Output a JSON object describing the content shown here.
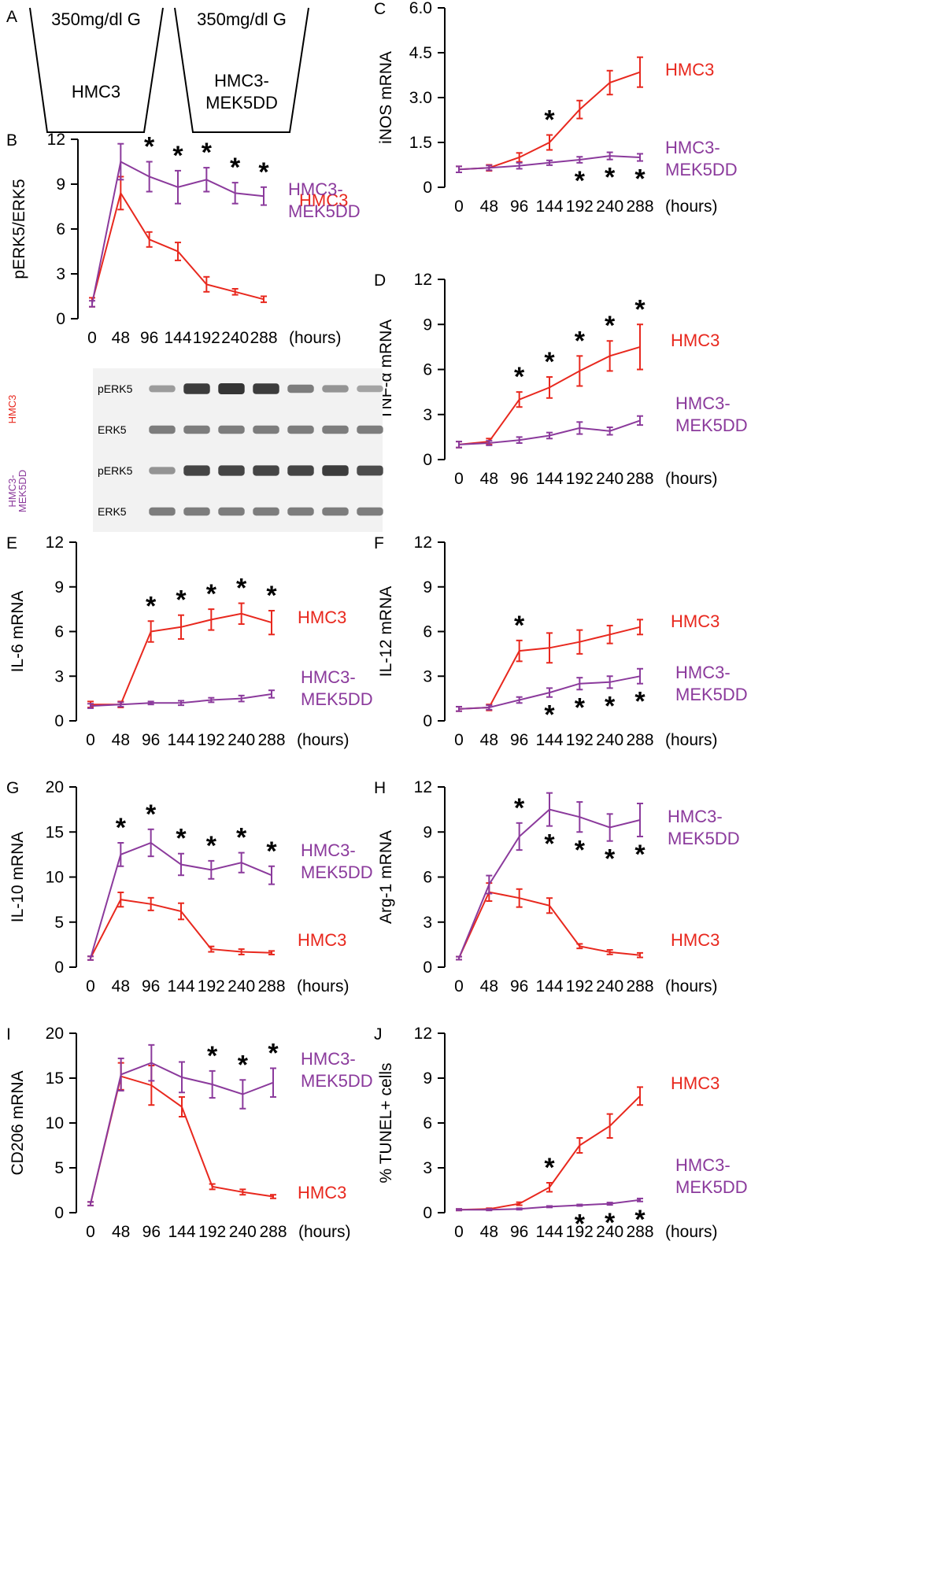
{
  "colors": {
    "hmc3": "#e8281e",
    "mek5dd": "#8b3a9c",
    "axis": "#000000",
    "blot_band": "#2a2a2a",
    "blot_bg": "#f2f2f2"
  },
  "x_unit": "(hours)",
  "panel_a": {
    "letter": "A",
    "cups": [
      {
        "top_label": "350mg/dl G",
        "body_lines": [
          "HMC3"
        ]
      },
      {
        "top_label": "350mg/dl G",
        "body_lines": [
          "HMC3-",
          "MEK5DD"
        ]
      }
    ]
  },
  "blot": {
    "groups": [
      {
        "name_lines": [
          "HMC3"
        ],
        "color_key": "hmc3",
        "lanes": [
          {
            "label": "pERK5",
            "intensities": [
              0.35,
              0.95,
              1.0,
              0.95,
              0.55,
              0.4,
              0.3
            ]
          },
          {
            "label": "ERK5",
            "intensities": [
              0.55,
              0.55,
              0.55,
              0.55,
              0.55,
              0.55,
              0.55
            ]
          }
        ]
      },
      {
        "name_lines": [
          "HMC3-",
          "MEK5DD"
        ],
        "color_key": "mek5dd",
        "lanes": [
          {
            "label": "pERK5",
            "intensities": [
              0.4,
              0.9,
              0.9,
              0.9,
              0.9,
              0.95,
              0.85
            ]
          },
          {
            "label": "ERK5",
            "intensities": [
              0.55,
              0.55,
              0.55,
              0.55,
              0.55,
              0.55,
              0.55
            ]
          }
        ]
      }
    ]
  },
  "chart_data": [
    {
      "panel": "B",
      "type": "line",
      "ylabel": "pERK5/ERK5",
      "ylim": [
        0,
        12
      ],
      "yticks": [
        0,
        3,
        6,
        9,
        12
      ],
      "x": [
        0,
        48,
        96,
        144,
        192,
        240,
        288
      ],
      "series": [
        {
          "name_lines": [
            "HMC3"
          ],
          "color_key": "hmc3",
          "values": [
            1.1,
            8.4,
            5.3,
            4.5,
            2.3,
            1.8,
            1.3
          ],
          "errors": [
            0.3,
            1.1,
            0.5,
            0.6,
            0.5,
            0.2,
            0.2
          ]
        },
        {
          "name_lines": [
            "HMC3-",
            "MEK5DD"
          ],
          "color_key": "mek5dd",
          "values": [
            1.0,
            10.5,
            9.5,
            8.8,
            9.3,
            8.4,
            8.2
          ],
          "errors": [
            0.2,
            1.2,
            1.0,
            1.1,
            0.8,
            0.7,
            0.6
          ]
        }
      ],
      "stars": [
        96,
        144,
        192,
        240,
        288
      ],
      "star_pos": "above"
    },
    {
      "panel": "C",
      "type": "line",
      "ylabel": "iNOS mRNA",
      "ylim": [
        0,
        6.0
      ],
      "yticks": [
        0,
        1.5,
        3.0,
        4.5,
        6.0
      ],
      "x": [
        0,
        48,
        96,
        144,
        192,
        240,
        288
      ],
      "series": [
        {
          "name_lines": [
            "HMC3"
          ],
          "color_key": "hmc3",
          "values": [
            0.6,
            0.65,
            1.0,
            1.5,
            2.6,
            3.5,
            3.85
          ],
          "errors": [
            0.1,
            0.1,
            0.15,
            0.25,
            0.3,
            0.4,
            0.5
          ]
        },
        {
          "name_lines": [
            "HMC3-",
            "MEK5DD"
          ],
          "color_key": "mek5dd",
          "values": [
            0.6,
            0.65,
            0.72,
            0.82,
            0.92,
            1.05,
            1.0
          ],
          "errors": [
            0.1,
            0.08,
            0.1,
            0.08,
            0.1,
            0.12,
            0.12
          ]
        }
      ],
      "stars": [
        144,
        192,
        240,
        288
      ],
      "star_pos": "split",
      "star_split_red": [
        144
      ]
    },
    {
      "panel": "D",
      "type": "line",
      "ylabel": "TNF-α mRNA",
      "ylim": [
        0,
        12
      ],
      "yticks": [
        0,
        3,
        6,
        9,
        12
      ],
      "x": [
        0,
        48,
        96,
        144,
        192,
        240,
        288
      ],
      "series": [
        {
          "name_lines": [
            "HMC3"
          ],
          "color_key": "hmc3",
          "values": [
            1.0,
            1.2,
            4.0,
            4.8,
            5.9,
            6.9,
            7.5
          ],
          "errors": [
            0.2,
            0.2,
            0.5,
            0.7,
            1.0,
            1.0,
            1.5
          ]
        },
        {
          "name_lines": [
            "HMC3-",
            "MEK5DD"
          ],
          "color_key": "mek5dd",
          "values": [
            1.0,
            1.1,
            1.3,
            1.6,
            2.1,
            1.9,
            2.6
          ],
          "errors": [
            0.2,
            0.15,
            0.2,
            0.2,
            0.4,
            0.25,
            0.3
          ]
        }
      ],
      "stars": [
        96,
        144,
        192,
        240,
        288
      ],
      "star_pos": "above"
    },
    {
      "panel": "E",
      "type": "line",
      "ylabel": "IL-6 mRNA",
      "ylim": [
        0,
        12
      ],
      "yticks": [
        0,
        3,
        6,
        9,
        12
      ],
      "x": [
        0,
        48,
        96,
        144,
        192,
        240,
        288
      ],
      "series": [
        {
          "name_lines": [
            "HMC3"
          ],
          "color_key": "hmc3",
          "values": [
            1.1,
            1.1,
            6.0,
            6.3,
            6.8,
            7.2,
            6.6
          ],
          "errors": [
            0.2,
            0.2,
            0.7,
            0.8,
            0.7,
            0.7,
            0.8
          ]
        },
        {
          "name_lines": [
            "HMC3-",
            "MEK5DD"
          ],
          "color_key": "mek5dd",
          "values": [
            1.0,
            1.1,
            1.2,
            1.2,
            1.4,
            1.5,
            1.8
          ],
          "errors": [
            0.15,
            0.15,
            0.1,
            0.15,
            0.15,
            0.2,
            0.25
          ]
        }
      ],
      "stars": [
        96,
        144,
        192,
        240,
        288
      ],
      "star_pos": "above"
    },
    {
      "panel": "F",
      "type": "line",
      "ylabel": "IL-12 mRNA",
      "ylim": [
        0,
        12
      ],
      "yticks": [
        0,
        3,
        6,
        9,
        12
      ],
      "x": [
        0,
        48,
        96,
        144,
        192,
        240,
        288
      ],
      "series": [
        {
          "name_lines": [
            "HMC3"
          ],
          "color_key": "hmc3",
          "values": [
            0.8,
            0.9,
            4.7,
            4.9,
            5.3,
            5.8,
            6.3
          ],
          "errors": [
            0.15,
            0.2,
            0.7,
            1.0,
            0.8,
            0.6,
            0.5
          ]
        },
        {
          "name_lines": [
            "HMC3-",
            "MEK5DD"
          ],
          "color_key": "mek5dd",
          "values": [
            0.8,
            0.9,
            1.4,
            1.9,
            2.5,
            2.6,
            3.0
          ],
          "errors": [
            0.15,
            0.15,
            0.2,
            0.3,
            0.4,
            0.4,
            0.5
          ]
        }
      ],
      "stars": [
        96,
        144,
        192,
        240,
        288
      ],
      "star_pos": "split",
      "star_split_red": [
        96
      ]
    },
    {
      "panel": "G",
      "type": "line",
      "ylabel": "IL-10 mRNA",
      "ylim": [
        0,
        20
      ],
      "yticks": [
        0,
        5,
        10,
        15,
        20
      ],
      "x": [
        0,
        48,
        96,
        144,
        192,
        240,
        288
      ],
      "series": [
        {
          "name_lines": [
            "HMC3"
          ],
          "color_key": "hmc3",
          "values": [
            1.0,
            7.5,
            7.0,
            6.2,
            2.0,
            1.7,
            1.6
          ],
          "errors": [
            0.2,
            0.8,
            0.7,
            0.9,
            0.3,
            0.3,
            0.2
          ]
        },
        {
          "name_lines": [
            "HMC3-",
            "MEK5DD"
          ],
          "color_key": "mek5dd",
          "values": [
            1.0,
            12.5,
            13.8,
            11.4,
            10.8,
            11.6,
            10.2
          ],
          "errors": [
            0.2,
            1.3,
            1.5,
            1.2,
            1.0,
            1.1,
            1.0
          ]
        }
      ],
      "stars": [
        48,
        96,
        144,
        192,
        240,
        288
      ],
      "star_pos": "above"
    },
    {
      "panel": "H",
      "type": "line",
      "ylabel": "Arg-1 mRNA",
      "ylim": [
        0,
        12
      ],
      "yticks": [
        0,
        3,
        6,
        9,
        12
      ],
      "x": [
        0,
        48,
        96,
        144,
        192,
        240,
        288
      ],
      "series": [
        {
          "name_lines": [
            "HMC3"
          ],
          "color_key": "hmc3",
          "values": [
            0.6,
            5.0,
            4.6,
            4.1,
            1.4,
            1.0,
            0.8
          ],
          "errors": [
            0.1,
            0.6,
            0.6,
            0.5,
            0.15,
            0.15,
            0.15
          ]
        },
        {
          "name_lines": [
            "HMC3-",
            "MEK5DD"
          ],
          "color_key": "mek5dd",
          "values": [
            0.6,
            5.5,
            8.7,
            10.5,
            10.0,
            9.3,
            9.8
          ],
          "errors": [
            0.1,
            0.6,
            0.9,
            1.1,
            1.0,
            0.9,
            1.1
          ]
        }
      ],
      "stars": [
        96,
        144,
        192,
        240,
        288
      ],
      "star_pos": "split",
      "star_split_red": [
        96
      ]
    },
    {
      "panel": "I",
      "type": "line",
      "ylabel": "CD206 mRNA",
      "ylim": [
        0,
        20
      ],
      "yticks": [
        0,
        5,
        10,
        15,
        20
      ],
      "x": [
        0,
        48,
        96,
        144,
        192,
        240,
        288
      ],
      "series": [
        {
          "name_lines": [
            "HMC3"
          ],
          "color_key": "hmc3",
          "values": [
            1.0,
            15.2,
            14.2,
            11.8,
            2.9,
            2.3,
            1.8
          ],
          "errors": [
            0.2,
            1.5,
            2.2,
            1.1,
            0.3,
            0.3,
            0.2
          ]
        },
        {
          "name_lines": [
            "HMC3-",
            "MEK5DD"
          ],
          "color_key": "mek5dd",
          "values": [
            1.0,
            15.4,
            16.7,
            15.1,
            14.3,
            13.2,
            14.5
          ],
          "errors": [
            0.2,
            1.8,
            2.0,
            1.7,
            1.5,
            1.6,
            1.6
          ]
        }
      ],
      "stars": [
        192,
        240,
        288
      ],
      "star_pos": "above"
    },
    {
      "panel": "J",
      "type": "line",
      "ylabel": "% TUNEL+ cells",
      "ylim": [
        0,
        12
      ],
      "yticks": [
        0,
        3,
        6,
        9,
        12
      ],
      "x": [
        0,
        48,
        96,
        144,
        192,
        240,
        288
      ],
      "series": [
        {
          "name_lines": [
            "HMC3"
          ],
          "color_key": "hmc3",
          "values": [
            0.2,
            0.25,
            0.6,
            1.7,
            4.5,
            5.8,
            7.8
          ],
          "errors": [
            0.05,
            0.05,
            0.1,
            0.3,
            0.5,
            0.8,
            0.6
          ]
        },
        {
          "name_lines": [
            "HMC3-",
            "MEK5DD"
          ],
          "color_key": "mek5dd",
          "values": [
            0.2,
            0.2,
            0.25,
            0.4,
            0.5,
            0.6,
            0.85
          ],
          "errors": [
            0.05,
            0.05,
            0.05,
            0.05,
            0.05,
            0.08,
            0.1
          ]
        }
      ],
      "stars": [
        144,
        192,
        240,
        288
      ],
      "star_pos": "split",
      "star_split_red": [
        144
      ]
    }
  ]
}
